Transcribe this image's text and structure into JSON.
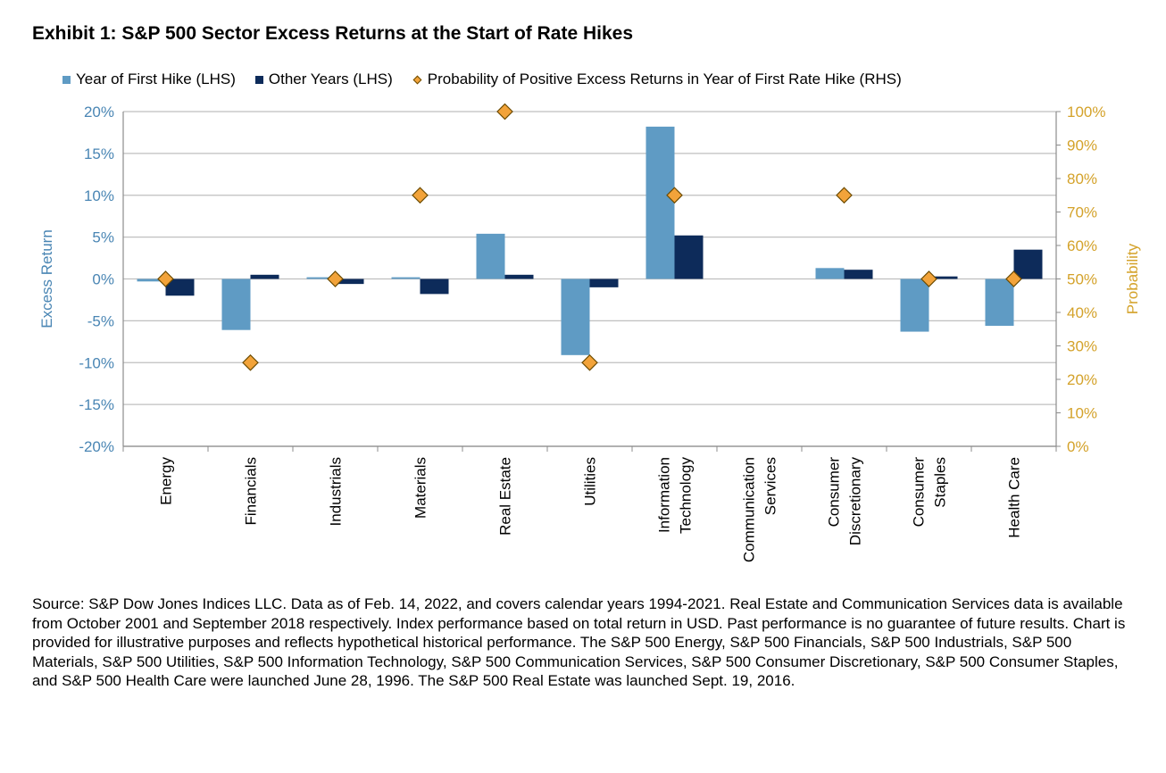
{
  "title": "Exhibit 1: S&P 500 Sector Excess Returns at the Start of Rate Hikes",
  "legend": {
    "series1": "Year of First Hike (LHS)",
    "series2": "Other Years (LHS)",
    "series3": "Probability of Positive Excess Returns in Year of First Rate Hike (RHS)"
  },
  "colors": {
    "series1": "#5f9bc4",
    "series2": "#0d2b5a",
    "series3": "#f2a33a",
    "left_axis": "#4a86b4",
    "right_axis": "#d4a22a",
    "grid": "#bfbfbf"
  },
  "chart_data": {
    "type": "bar",
    "categories": [
      [
        "Energy"
      ],
      [
        "Financials"
      ],
      [
        "Industrials"
      ],
      [
        "Materials"
      ],
      [
        "Real Estate"
      ],
      [
        "Utilities"
      ],
      [
        "Information",
        "Technology"
      ],
      [
        "Communication",
        "Services"
      ],
      [
        "Consumer",
        "Discretionary"
      ],
      [
        "Consumer",
        "Staples"
      ],
      [
        "Health Care"
      ]
    ],
    "series": [
      {
        "name": "Year of First Hike (LHS)",
        "type": "bar",
        "axis": "left",
        "values": [
          -0.3,
          -6.1,
          0.2,
          0.2,
          5.4,
          -9.1,
          18.2,
          null,
          1.3,
          -6.3,
          -5.6
        ]
      },
      {
        "name": "Other Years (LHS)",
        "type": "bar",
        "axis": "left",
        "values": [
          -2.0,
          0.5,
          -0.6,
          -1.8,
          0.5,
          -1.0,
          5.2,
          null,
          1.1,
          0.3,
          3.5
        ]
      },
      {
        "name": "Probability of Positive Excess Returns in Year of First Rate Hike (RHS)",
        "type": "scatter",
        "axis": "right",
        "values": [
          50,
          25,
          50,
          75,
          100,
          25,
          75,
          null,
          75,
          50,
          50
        ]
      }
    ],
    "y_left": {
      "label": "Excess Return",
      "ylim": [
        -20,
        20
      ],
      "ticks": [
        "20%",
        "15%",
        "10%",
        "5%",
        "0%",
        "-5%",
        "-10%",
        "-15%",
        "-20%"
      ]
    },
    "y_right": {
      "label": "Probability",
      "ylim": [
        0,
        100
      ],
      "ticks": [
        "100%",
        "90%",
        "80%",
        "70%",
        "60%",
        "50%",
        "40%",
        "30%",
        "20%",
        "10%",
        "0%"
      ]
    },
    "grid": true,
    "legend_position": "top"
  },
  "source": "Source: S&P Dow Jones Indices LLC. Data as of Feb. 14, 2022, and covers calendar years 1994-2021. Real Estate and Communication Services data is available from October 2001 and September 2018 respectively. Index performance based on total return in USD. Past performance is no guarantee of future results. Chart is provided for illustrative purposes and reflects hypothetical historical performance. The S&P 500 Energy, S&P 500 Financials, S&P 500 Industrials, S&P 500 Materials, S&P 500 Utilities, S&P 500 Information Technology, S&P 500 Communication Services, S&P 500 Consumer Discretionary, S&P 500 Consumer Staples, and S&P 500 Health Care were launched June 28, 1996. The S&P 500 Real Estate was launched Sept. 19, 2016."
}
